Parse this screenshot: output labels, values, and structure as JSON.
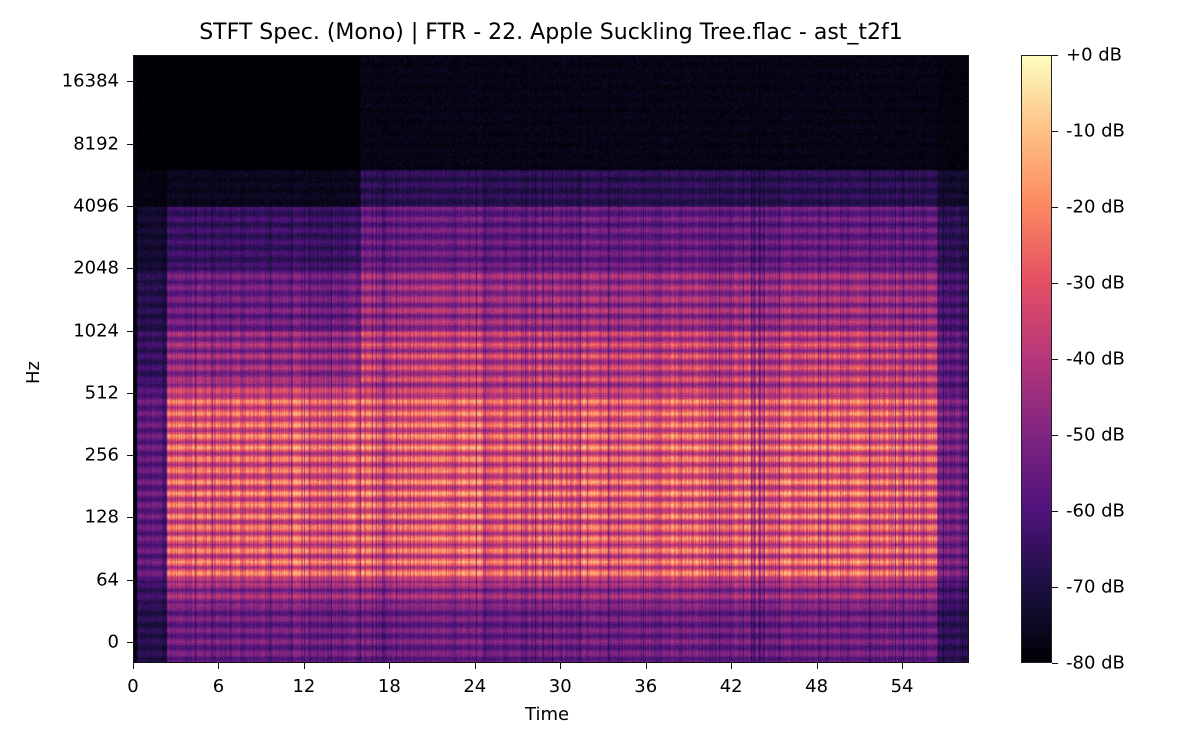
{
  "chart_data": {
    "type": "heatmap",
    "title": "STFT Spec. (Mono) | FTR - 22. Apple Suckling Tree.flac - ast_t2f1",
    "xlabel": "Time",
    "ylabel": "Hz",
    "x_ticks": [
      "0",
      "6",
      "12",
      "18",
      "24",
      "30",
      "36",
      "42",
      "48",
      "54"
    ],
    "x_tick_values": [
      0,
      6,
      12,
      18,
      24,
      30,
      36,
      42,
      48,
      54
    ],
    "xlim": [
      0,
      58.7
    ],
    "y_scale": "log2",
    "y_ticks": [
      "0",
      "64",
      "128",
      "256",
      "512",
      "1024",
      "2048",
      "4096",
      "8192",
      "16384"
    ],
    "y_tick_values": [
      0,
      64,
      128,
      256,
      512,
      1024,
      2048,
      4096,
      8192,
      16384
    ],
    "colormap": "magma",
    "colorbar": {
      "ticks": [
        "+0 dB",
        "-10 dB",
        "-20 dB",
        "-30 dB",
        "-40 dB",
        "-50 dB",
        "-60 dB",
        "-70 dB",
        "-80 dB"
      ],
      "range": [
        -80,
        0
      ]
    },
    "description": {
      "audio_onset_s": 2.3,
      "audio_end_s": 56.5,
      "tail_end_s": 58.7,
      "energy_ceiling_hz": 6000,
      "brightest_band_hz": [
        64,
        512
      ]
    }
  }
}
